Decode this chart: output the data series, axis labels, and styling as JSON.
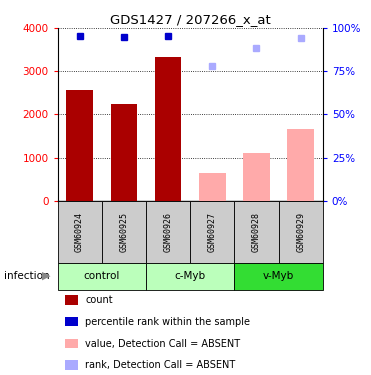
{
  "title": "GDS1427 / 207266_x_at",
  "samples": [
    "GSM60924",
    "GSM60925",
    "GSM60926",
    "GSM60927",
    "GSM60928",
    "GSM60929"
  ],
  "count_values": [
    2570,
    2250,
    3330,
    null,
    null,
    null
  ],
  "count_absent_values": [
    null,
    null,
    null,
    640,
    1100,
    1650
  ],
  "rank_values": [
    3820,
    3800,
    3820,
    null,
    null,
    null
  ],
  "rank_absent_values": [
    null,
    null,
    null,
    3130,
    3530,
    3780
  ],
  "ylim_left": [
    0,
    4000
  ],
  "ylim_right": [
    0,
    100
  ],
  "yticks_left": [
    0,
    1000,
    2000,
    3000,
    4000
  ],
  "ytick_labels_left": [
    "0",
    "1000",
    "2000",
    "3000",
    "4000"
  ],
  "yticks_right": [
    0,
    25,
    50,
    75,
    100
  ],
  "ytick_labels_right": [
    "0%",
    "25%",
    "50%",
    "75%",
    "100%"
  ],
  "bar_color_dark_red": "#aa0000",
  "bar_color_light_pink": "#ffaaaa",
  "dot_color_dark_blue": "#0000cc",
  "dot_color_light_blue": "#aaaaff",
  "group_colors": [
    "#bbffbb",
    "#bbffbb",
    "#33dd33"
  ],
  "group_labels": [
    "control",
    "c-Myb",
    "v-Myb"
  ],
  "group_ranges": [
    [
      0,
      2
    ],
    [
      2,
      4
    ],
    [
      4,
      6
    ]
  ],
  "sample_bg_color": "#cccccc",
  "infection_label": "infection",
  "legend_items": [
    {
      "color": "#aa0000",
      "label": "count"
    },
    {
      "color": "#0000cc",
      "label": "percentile rank within the sample"
    },
    {
      "color": "#ffaaaa",
      "label": "value, Detection Call = ABSENT"
    },
    {
      "color": "#aaaaff",
      "label": "rank, Detection Call = ABSENT"
    }
  ]
}
